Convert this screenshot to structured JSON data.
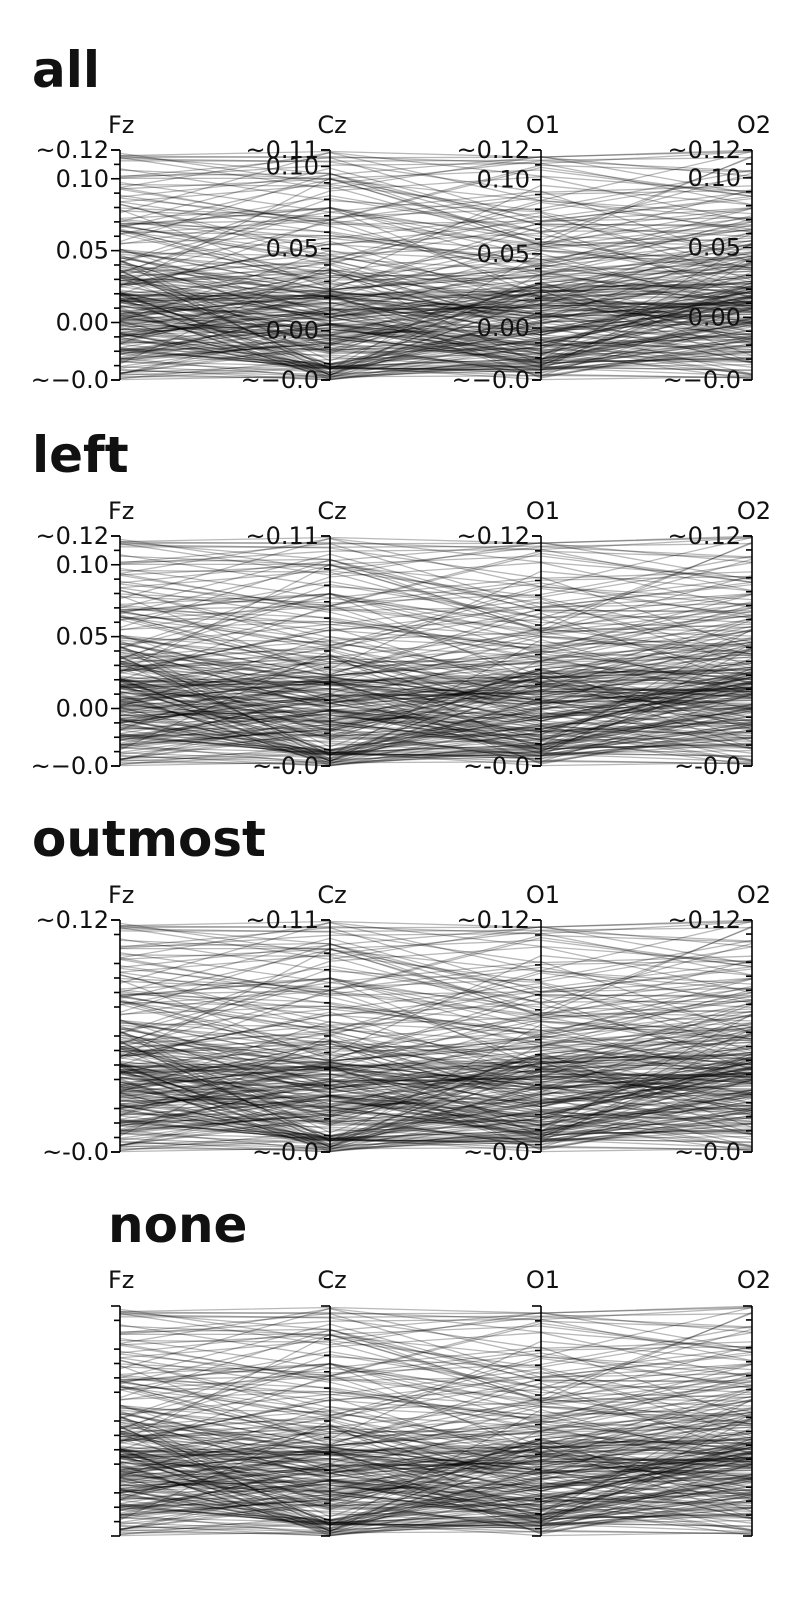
{
  "chart_data": {
    "type": "parallel_coordinates",
    "axes": [
      "Fz",
      "Cz",
      "O1",
      "O2"
    ],
    "line_count": 260,
    "line_color": "#000000",
    "panels": [
      {
        "title": "all",
        "tick_labels": [
          {
            "axis": "Fz",
            "labels": [
              {
                "value": 0.12,
                "text": "~0.12"
              },
              {
                "value": 0.1,
                "text": "0.10"
              },
              {
                "value": 0.05,
                "text": "0.05"
              },
              {
                "value": 0.0,
                "text": "0.00"
              },
              {
                "value": -0.04,
                "text": "~−0.0"
              }
            ]
          },
          {
            "axis": "Cz",
            "labels": [
              {
                "value": 0.11,
                "text": "~0.11"
              },
              {
                "value": 0.1,
                "text": "0.10"
              },
              {
                "value": 0.05,
                "text": "0.05"
              },
              {
                "value": 0.0,
                "text": "0.00"
              },
              {
                "value": -0.03,
                "text": "~−0.0"
              }
            ]
          },
          {
            "axis": "O1",
            "labels": [
              {
                "value": 0.12,
                "text": "~0.12"
              },
              {
                "value": 0.1,
                "text": "0.10"
              },
              {
                "value": 0.05,
                "text": "0.05"
              },
              {
                "value": 0.0,
                "text": "0.00"
              },
              {
                "value": -0.035,
                "text": "~−0.0"
              }
            ]
          },
          {
            "axis": "O2",
            "labels": [
              {
                "value": 0.12,
                "text": "~0.12"
              },
              {
                "value": 0.1,
                "text": "0.10"
              },
              {
                "value": 0.05,
                "text": "0.05"
              },
              {
                "value": 0.0,
                "text": "0.00"
              },
              {
                "value": -0.045,
                "text": "~−0.0"
              }
            ]
          }
        ]
      },
      {
        "title": "left",
        "tick_labels": [
          {
            "axis": "Fz",
            "labels": [
              {
                "value": 0.12,
                "text": "~0.12"
              },
              {
                "value": 0.1,
                "text": "0.10"
              },
              {
                "value": 0.05,
                "text": "0.05"
              },
              {
                "value": 0.0,
                "text": "0.00"
              },
              {
                "value": -0.04,
                "text": "~−0.0"
              }
            ]
          },
          {
            "axis": "Cz",
            "labels": [
              {
                "value": 0.11,
                "text": "~0.11"
              },
              {
                "value": -0.03,
                "text": "~-0.0"
              }
            ]
          },
          {
            "axis": "O1",
            "labels": [
              {
                "value": 0.12,
                "text": "~0.12"
              },
              {
                "value": -0.035,
                "text": "~-0.0"
              }
            ]
          },
          {
            "axis": "O2",
            "labels": [
              {
                "value": 0.12,
                "text": "~0.12"
              },
              {
                "value": -0.045,
                "text": "~-0.0"
              }
            ]
          }
        ]
      },
      {
        "title": "outmost",
        "tick_labels": [
          {
            "axis": "Fz",
            "labels": [
              {
                "value": 0.12,
                "text": "~0.12"
              },
              {
                "value": -0.04,
                "text": "~-0.0"
              }
            ]
          },
          {
            "axis": "Cz",
            "labels": [
              {
                "value": 0.11,
                "text": "~0.11"
              },
              {
                "value": -0.03,
                "text": "~-0.0"
              }
            ]
          },
          {
            "axis": "O1",
            "labels": [
              {
                "value": 0.12,
                "text": "~0.12"
              },
              {
                "value": -0.035,
                "text": "~-0.0"
              }
            ]
          },
          {
            "axis": "O2",
            "labels": [
              {
                "value": 0.12,
                "text": "~0.12"
              },
              {
                "value": -0.045,
                "text": "~-0.0"
              }
            ]
          }
        ]
      },
      {
        "title": "none",
        "tick_labels": [
          {
            "axis": "Fz",
            "labels": []
          },
          {
            "axis": "Cz",
            "labels": []
          },
          {
            "axis": "O1",
            "labels": []
          },
          {
            "axis": "O2",
            "labels": []
          }
        ]
      }
    ],
    "axis_ranges": [
      {
        "axis": "Fz",
        "min": -0.04,
        "max": 0.12
      },
      {
        "axis": "Cz",
        "min": -0.03,
        "max": 0.11
      },
      {
        "axis": "O1",
        "min": -0.035,
        "max": 0.12
      },
      {
        "axis": "O2",
        "min": -0.045,
        "max": 0.12
      }
    ],
    "minor_tick_values": [
      0.11,
      0.09,
      0.08,
      0.07,
      0.06,
      0.04,
      0.03,
      0.02,
      0.01,
      -0.01,
      -0.02,
      -0.03
    ]
  }
}
